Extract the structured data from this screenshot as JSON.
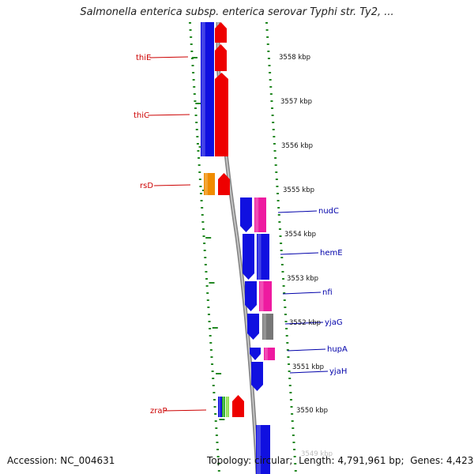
{
  "title": "Salmonella enterica subsp. enterica serovar Typhi str. Ty2, ...",
  "footer": {
    "accession_label": "Accession:",
    "accession": "NC_004631",
    "topology_label": "Topology:",
    "topology": "circular",
    "length_label": "Length:",
    "length": "4,791,961 bp",
    "genes_label": "Genes:",
    "genes": "4,423"
  },
  "scale": {
    "unit": "kbp",
    "ticks": [
      3558,
      3557,
      3556,
      3555,
      3554,
      3553,
      3552,
      3551,
      3550,
      3549
    ]
  },
  "genes_left": [
    {
      "name": "thiE",
      "color": "#cc0000"
    },
    {
      "name": "thiC",
      "color": "#cc0000"
    },
    {
      "name": "rsD",
      "color": "#cc0000"
    },
    {
      "name": "zraP",
      "color": "#cc0000"
    }
  ],
  "genes_right": [
    {
      "name": "nudC",
      "color": "#0000aa"
    },
    {
      "name": "hemE",
      "color": "#0000aa"
    },
    {
      "name": "nfi",
      "color": "#0000aa"
    },
    {
      "name": "yjaG",
      "color": "#0000aa"
    },
    {
      "name": "hupA",
      "color": "#0000aa"
    },
    {
      "name": "yjaH",
      "color": "#0000aa"
    }
  ],
  "colors": {
    "blue": "#1010e0",
    "red": "#ee0000",
    "magenta": "#ee1aa0",
    "orange": "#f08c00",
    "gray": "#777777",
    "green": "#22aa22",
    "tick_green": "#228822",
    "axis_gray": "#888888"
  }
}
